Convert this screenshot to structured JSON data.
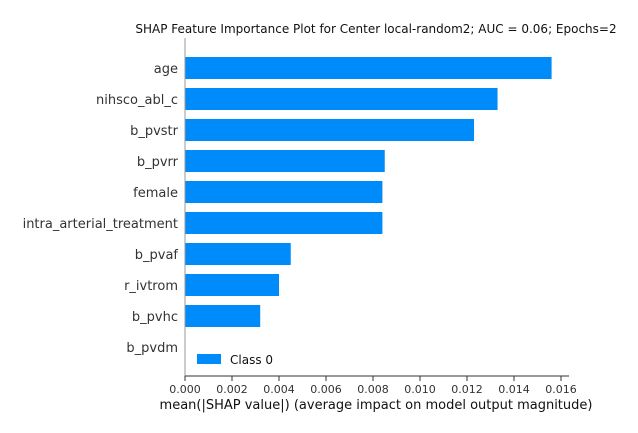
{
  "chart_data": {
    "type": "bar",
    "orientation": "horizontal",
    "title": "SHAP Feature Importance Plot for Center local-random2; AUC = 0.06; Epochs=2",
    "xlabel": "mean(|SHAP value|) (average impact on model output magnitude)",
    "ylabel": "",
    "xlim": [
      0,
      0.0162
    ],
    "x_ticks": [
      "0.000",
      "0.002",
      "0.004",
      "0.006",
      "0.008",
      "0.010",
      "0.012",
      "0.014",
      "0.016"
    ],
    "categories": [
      "age",
      "nihsco_abl_c",
      "b_pvstr",
      "b_pvrr",
      "female",
      "intra_arterial_treatment",
      "b_pvaf",
      "r_ivtrom",
      "b_pvhc",
      "b_pvdm"
    ],
    "series": [
      {
        "name": "Class 0",
        "color": "#008bfb",
        "values": [
          0.0156,
          0.0133,
          0.0123,
          0.0085,
          0.0084,
          0.0084,
          0.0045,
          0.004,
          0.0032,
          0.0
        ]
      }
    ],
    "legend": {
      "placement": "bottom-left",
      "entries": [
        "Class 0"
      ]
    },
    "grid": false
  }
}
